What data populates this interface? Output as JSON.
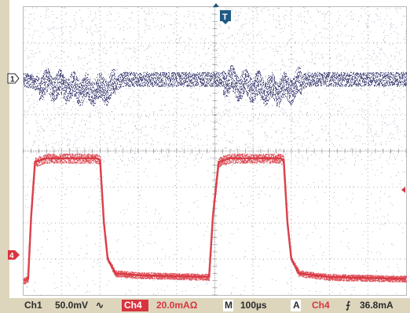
{
  "chart_data": {
    "type": "line",
    "instrument": "oscilloscope",
    "x": {
      "unit": "µs",
      "per_division": 100,
      "divisions": 10,
      "range": [
        0,
        1000
      ]
    },
    "y_divisions": 8,
    "grid": true,
    "trigger_marker": {
      "label": "T",
      "time_us": 488
    },
    "series": [
      {
        "channel": "1",
        "name": "Ch1",
        "color": "#35356d",
        "scale": "50.0mV",
        "coupling_symbol": "∿",
        "ground_level_div": 6.0,
        "description_points": [
          [
            0,
            6.0
          ],
          [
            50,
            5.85
          ],
          [
            100,
            5.8
          ],
          [
            170,
            5.7
          ],
          [
            220,
            5.75
          ],
          [
            260,
            6.0
          ],
          [
            520,
            6.0
          ],
          [
            560,
            5.85
          ],
          [
            600,
            5.8
          ],
          [
            660,
            5.7
          ],
          [
            700,
            5.75
          ],
          [
            740,
            6.0
          ],
          [
            1000,
            6.0
          ]
        ]
      },
      {
        "channel": "4",
        "name": "Ch4",
        "color": "#d8343e",
        "scale": "20.0mAΩ",
        "ground_level_div": 0.4,
        "description_points": [
          [
            0,
            0.4
          ],
          [
            12,
            0.45
          ],
          [
            20,
            2.2
          ],
          [
            30,
            3.7
          ],
          [
            60,
            3.8
          ],
          [
            190,
            3.8
          ],
          [
            200,
            3.75
          ],
          [
            210,
            2.0
          ],
          [
            220,
            1.0
          ],
          [
            240,
            0.6
          ],
          [
            300,
            0.55
          ],
          [
            485,
            0.5
          ],
          [
            495,
            2.2
          ],
          [
            510,
            3.7
          ],
          [
            540,
            3.8
          ],
          [
            670,
            3.8
          ],
          [
            680,
            3.75
          ],
          [
            690,
            2.0
          ],
          [
            700,
            1.0
          ],
          [
            720,
            0.6
          ],
          [
            800,
            0.5
          ],
          [
            1000,
            0.45
          ]
        ]
      }
    ]
  },
  "status_bar": {
    "ch1_label": "Ch1",
    "ch1_scale": "50.0mV",
    "ch1_coupling": "∿",
    "ch4_label": "Ch4",
    "ch4_scale": "20.0mAΩ",
    "timebase_label": "M",
    "timebase": "100µs",
    "trigger_label": "A",
    "trigger_source": "Ch4",
    "trigger_slope": "⨍",
    "trigger_level": "36.8mA"
  },
  "markers": {
    "ch1_marker": "1",
    "ch4_marker": "4",
    "trigger_marker": "T"
  },
  "colors": {
    "ch1": "#35356d",
    "ch4": "#d8343e",
    "frame": "#ddd6bd",
    "grid": "#9c9c9c",
    "background": "#ffffff"
  }
}
